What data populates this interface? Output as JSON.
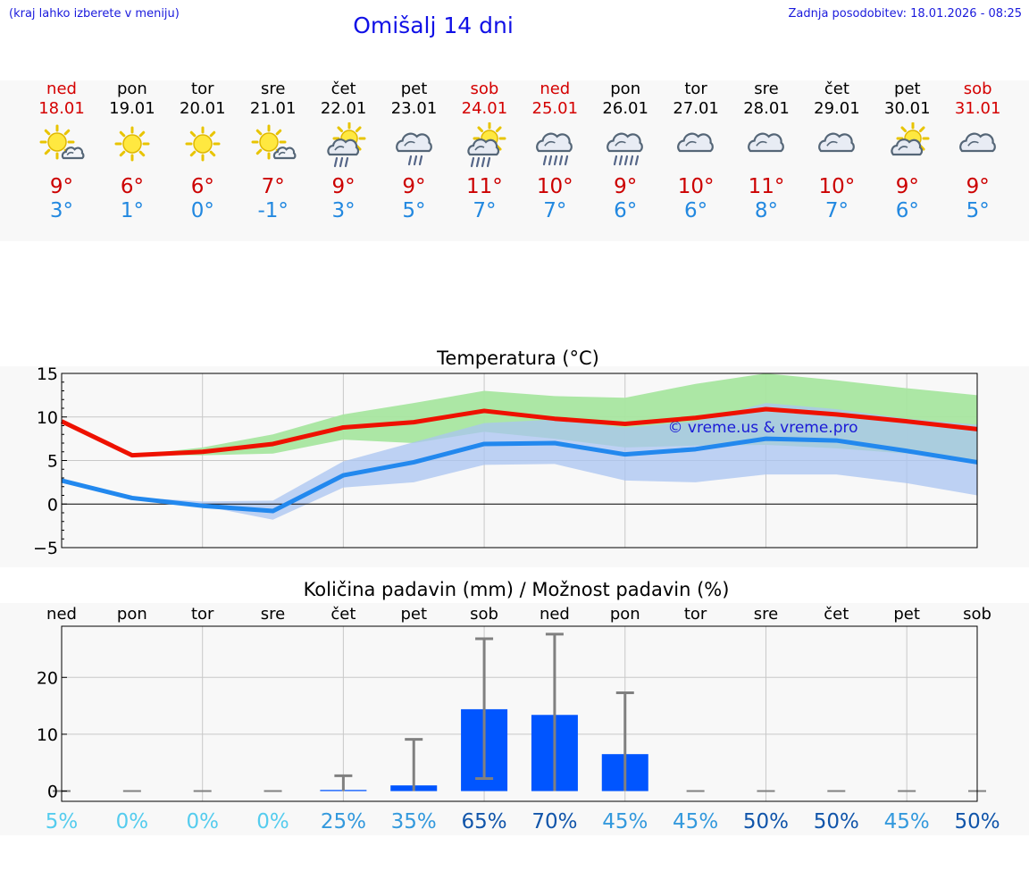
{
  "header": {
    "hint": "(kraj lahko izberete v meniju)",
    "title": "Omišalj 14 dni",
    "updated": "Zadnja posodobitev: 18.01.2026 - 08:25"
  },
  "days": [
    {
      "name": "ned",
      "date": "18.01",
      "weekend": true,
      "icon": "sun-small-cloud-icon",
      "tmax": "9°",
      "tmin": "3°"
    },
    {
      "name": "pon",
      "date": "19.01",
      "weekend": false,
      "icon": "sun-icon",
      "tmax": "6°",
      "tmin": "1°"
    },
    {
      "name": "tor",
      "date": "20.01",
      "weekend": false,
      "icon": "sun-icon",
      "tmax": "6°",
      "tmin": "0°"
    },
    {
      "name": "sre",
      "date": "21.01",
      "weekend": false,
      "icon": "sun-small-cloud-icon",
      "tmax": "7°",
      "tmin": "-1°"
    },
    {
      "name": "čet",
      "date": "22.01",
      "weekend": false,
      "icon": "sun-cloud-rain-icon",
      "tmax": "9°",
      "tmin": "3°"
    },
    {
      "name": "pet",
      "date": "23.01",
      "weekend": false,
      "icon": "cloud-rain-icon",
      "tmax": "9°",
      "tmin": "5°"
    },
    {
      "name": "sob",
      "date": "24.01",
      "weekend": true,
      "icon": "sun-cloud-heavy-rain-icon",
      "tmax": "11°",
      "tmin": "7°"
    },
    {
      "name": "ned",
      "date": "25.01",
      "weekend": true,
      "icon": "cloud-heavy-rain-icon",
      "tmax": "10°",
      "tmin": "7°"
    },
    {
      "name": "pon",
      "date": "26.01",
      "weekend": false,
      "icon": "cloud-heavy-rain-icon",
      "tmax": "9°",
      "tmin": "6°"
    },
    {
      "name": "tor",
      "date": "27.01",
      "weekend": false,
      "icon": "cloud-icon",
      "tmax": "10°",
      "tmin": "6°"
    },
    {
      "name": "sre",
      "date": "28.01",
      "weekend": false,
      "icon": "cloud-icon",
      "tmax": "11°",
      "tmin": "8°"
    },
    {
      "name": "čet",
      "date": "29.01",
      "weekend": false,
      "icon": "cloud-icon",
      "tmax": "10°",
      "tmin": "7°"
    },
    {
      "name": "pet",
      "date": "30.01",
      "weekend": false,
      "icon": "sun-cloud-icon",
      "tmax": "9°",
      "tmin": "6°"
    },
    {
      "name": "sob",
      "date": "31.01",
      "weekend": true,
      "icon": "cloud-icon",
      "tmax": "9°",
      "tmin": "5°"
    }
  ],
  "colors": {
    "tmax_line": "#ee1100",
    "tmin_line": "#2288ee",
    "tmax_band": "#a8e6a0",
    "tmin_band": "#aac4f2",
    "bar": "#0055ff",
    "errorbar": "#808080",
    "watermark": "#1a1ad6",
    "axis": "#000000",
    "grid": "#c8c8c8"
  },
  "chart_data": [
    {
      "type": "line",
      "title": "Temperatura (°C)",
      "xlabel": "",
      "ylabel": "",
      "x": [
        0,
        1,
        2,
        3,
        4,
        5,
        6,
        7,
        8,
        9,
        10,
        11,
        12,
        13
      ],
      "ylim": [
        -5,
        15
      ],
      "yticks": [
        "15",
        "10",
        "5",
        "0",
        "−5"
      ],
      "ytick_values": [
        15,
        10,
        5,
        0,
        -5
      ],
      "grid": true,
      "watermark": "© vreme.us & vreme.pro",
      "series": [
        {
          "role": "tmax",
          "values": [
            9.5,
            5.6,
            6.0,
            6.9,
            8.8,
            9.4,
            10.7,
            9.8,
            9.2,
            9.9,
            10.9,
            10.3,
            9.5,
            8.6
          ]
        },
        {
          "role": "tmin",
          "values": [
            2.7,
            0.7,
            -0.2,
            -0.8,
            3.3,
            4.8,
            6.9,
            7.0,
            5.7,
            6.3,
            7.5,
            7.3,
            6.1,
            4.8
          ]
        }
      ],
      "bands": [
        {
          "role": "tmax_range",
          "lower": [
            9.5,
            5.6,
            5.6,
            5.8,
            7.4,
            7.0,
            8.3,
            7.5,
            6.5,
            6.7,
            6.8,
            6.4,
            5.8,
            4.9
          ],
          "upper": [
            9.5,
            5.6,
            6.5,
            8.0,
            10.3,
            11.6,
            13.0,
            12.4,
            12.2,
            13.8,
            15.0,
            14.2,
            13.3,
            12.5
          ]
        },
        {
          "role": "tmin_range",
          "lower": [
            2.7,
            0.7,
            -0.2,
            -1.8,
            1.9,
            2.5,
            4.5,
            4.6,
            2.7,
            2.5,
            3.4,
            3.4,
            2.4,
            1.0
          ],
          "upper": [
            2.7,
            0.8,
            0.3,
            0.4,
            4.9,
            7.1,
            9.3,
            9.7,
            8.8,
            9.5,
            11.6,
            10.9,
            9.8,
            9.1
          ]
        }
      ]
    },
    {
      "type": "bar",
      "title": "Količina padavin (mm) / Možnost padavin (%)",
      "xlabel": "",
      "ylabel": "",
      "categories": [
        "ned",
        "pon",
        "tor",
        "sre",
        "čet",
        "pet",
        "sob",
        "ned",
        "pon",
        "tor",
        "sre",
        "čet",
        "pet",
        "sob"
      ],
      "values": [
        0,
        0,
        0,
        0,
        0.2,
        1.0,
        14.4,
        13.4,
        6.5,
        0,
        0,
        0,
        0,
        0
      ],
      "error_low": [
        0,
        0,
        0,
        0,
        0,
        0,
        2.2,
        0,
        0,
        0,
        0,
        0,
        0,
        0
      ],
      "error_high": [
        0,
        0,
        0,
        0,
        2.7,
        9.1,
        26.8,
        27.6,
        17.3,
        0,
        0,
        0,
        0,
        0
      ],
      "probabilities": [
        "5%",
        "0%",
        "0%",
        "0%",
        "25%",
        "35%",
        "65%",
        "70%",
        "45%",
        "45%",
        "50%",
        "50%",
        "45%",
        "50%"
      ],
      "prob_colors": [
        "#55ccee",
        "#55ccee",
        "#55ccee",
        "#55ccee",
        "#3399dd",
        "#3399dd",
        "#1155aa",
        "#1155aa",
        "#3399dd",
        "#3399dd",
        "#1155aa",
        "#1155aa",
        "#3399dd",
        "#1155aa"
      ],
      "ylim": [
        -1.8,
        29
      ],
      "yticks": [
        "20",
        "10",
        "0"
      ],
      "ytick_values": [
        20,
        10,
        0
      ],
      "grid": true
    }
  ]
}
